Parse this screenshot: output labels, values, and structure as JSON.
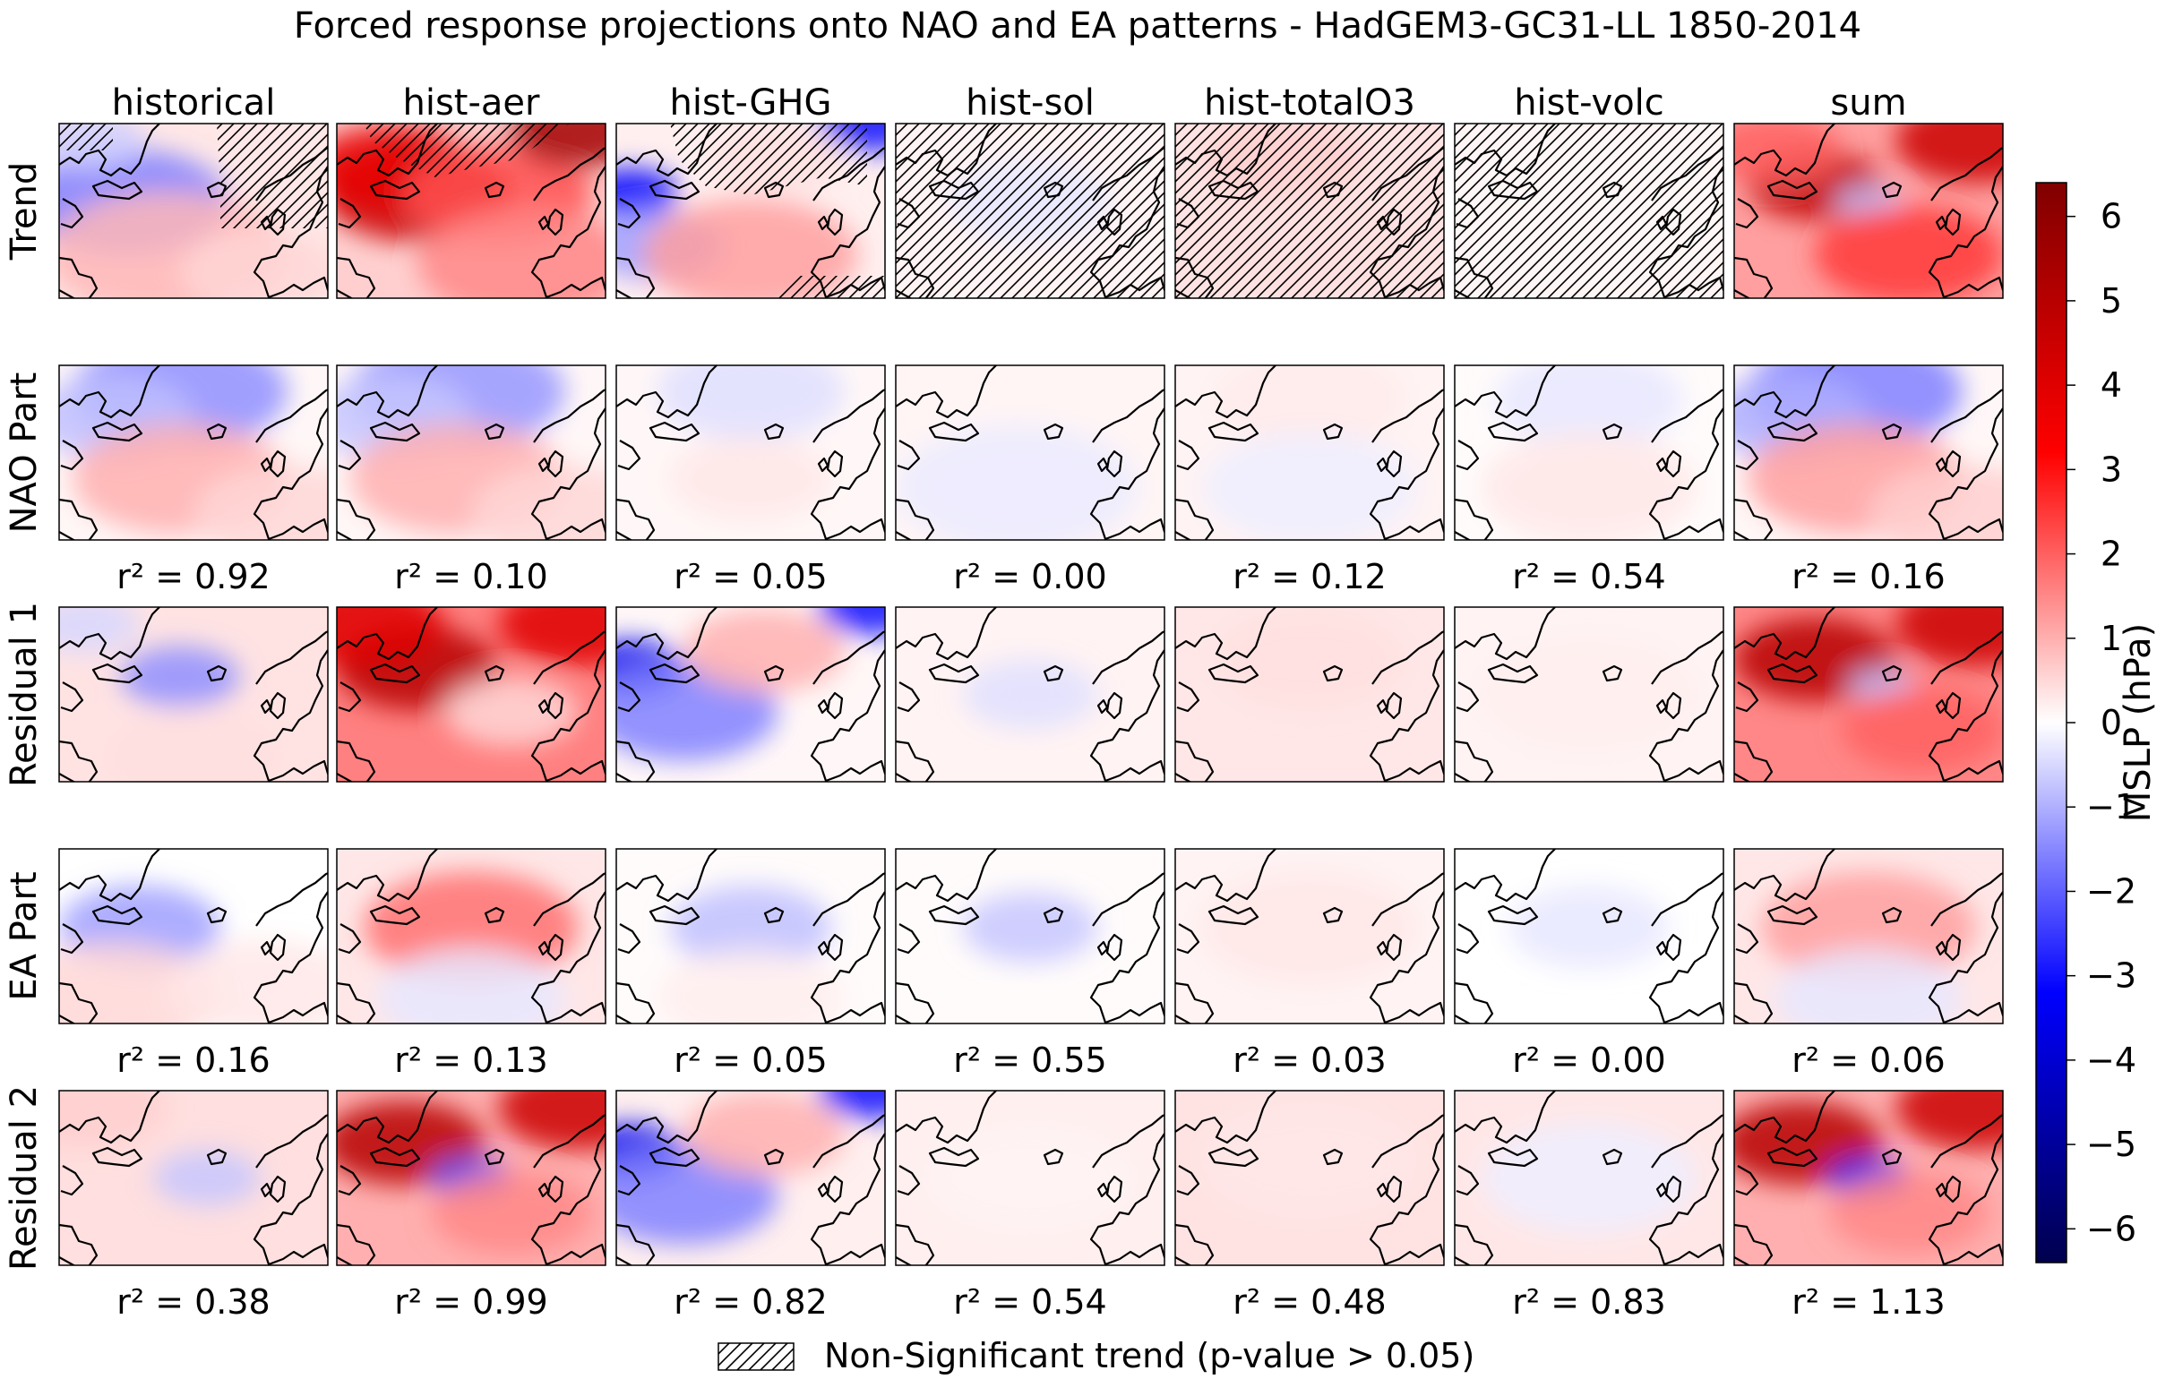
{
  "chart_data": {
    "type": "heatmap",
    "title": "Forced response projections onto NAO and EA patterns - HadGEM3-GC31-LL 1850-2014",
    "columns": [
      "historical",
      "hist-aer",
      "hist-GHG",
      "hist-sol",
      "hist-totalO3",
      "hist-volc",
      "sum"
    ],
    "rows": [
      {
        "label": "Trend",
        "r2": []
      },
      {
        "label": "NAO Part",
        "r2": [
          "r² = 0.92",
          "r² = 0.10",
          "r² = 0.05",
          "r² = 0.00",
          "r² = 0.12",
          "r² = 0.54",
          "r² = 0.16"
        ]
      },
      {
        "label": "Residual 1",
        "r2": []
      },
      {
        "label": "EA Part",
        "r2": [
          "r² = 0.16",
          "r² = 0.13",
          "r² = 0.05",
          "r² = 0.55",
          "r² = 0.03",
          "r² = 0.00",
          "r² = 0.06"
        ]
      },
      {
        "label": "Residual 2",
        "r2": [
          "r² = 0.38",
          "r² = 0.99",
          "r² = 0.82",
          "r² = 0.54",
          "r² = 0.48",
          "r² = 0.83",
          "r² = 1.13"
        ]
      }
    ],
    "fields": [
      [
        {
          "bg": 0.3,
          "b": [
            [
              0.25,
              0.45,
              0.38,
              -1.6
            ],
            [
              0.12,
              0.1,
              0.2,
              -0.6
            ],
            [
              0.4,
              0.75,
              0.45,
              0.9
            ],
            [
              0.75,
              0.85,
              0.3,
              0.5
            ]
          ]
        },
        {
          "bg": 0.6,
          "b": [
            [
              0.3,
              0.4,
              0.35,
              4.5
            ],
            [
              0.2,
              0.25,
              0.3,
              3.8
            ],
            [
              0.6,
              0.4,
              0.35,
              2.2
            ],
            [
              0.9,
              0.05,
              0.25,
              5.5
            ],
            [
              0.7,
              0.8,
              0.4,
              1.5
            ]
          ]
        },
        {
          "bg": 0.2,
          "b": [
            [
              0.05,
              0.4,
              0.18,
              -3.2
            ],
            [
              0.15,
              0.7,
              0.25,
              -1.2
            ],
            [
              0.5,
              0.75,
              0.4,
              1.2
            ],
            [
              0.95,
              0.0,
              0.2,
              -3.0
            ],
            [
              0.6,
              0.2,
              0.25,
              0.4
            ]
          ]
        },
        {
          "bg": 0.15,
          "b": [
            [
              0.5,
              0.45,
              0.3,
              -0.3
            ]
          ]
        },
        {
          "bg": 0.35,
          "b": [
            [
              0.4,
              0.2,
              0.3,
              0.6
            ],
            [
              0.5,
              0.7,
              0.4,
              0.4
            ]
          ]
        },
        {
          "bg": 0.12,
          "b": [
            [
              0.5,
              0.5,
              0.5,
              0.1
            ]
          ]
        },
        {
          "bg": 1.2,
          "b": [
            [
              0.3,
              0.35,
              0.25,
              4.8
            ],
            [
              0.5,
              0.45,
              0.12,
              -0.8
            ],
            [
              0.9,
              0.1,
              0.3,
              4.5
            ],
            [
              0.65,
              0.75,
              0.35,
              2.5
            ],
            [
              0.15,
              0.15,
              0.25,
              2.0
            ]
          ]
        }
      ],
      [
        {
          "bg": 0.1,
          "b": [
            [
              0.45,
              0.15,
              0.4,
              -1.4
            ],
            [
              0.2,
              0.3,
              0.3,
              -0.8
            ],
            [
              0.45,
              0.65,
              0.4,
              1.0
            ],
            [
              0.85,
              0.85,
              0.35,
              0.5
            ]
          ]
        },
        {
          "bg": 0.1,
          "b": [
            [
              0.45,
              0.15,
              0.4,
              -1.3
            ],
            [
              0.2,
              0.3,
              0.3,
              -0.7
            ],
            [
              0.45,
              0.65,
              0.4,
              1.0
            ],
            [
              0.85,
              0.85,
              0.35,
              0.5
            ]
          ]
        },
        {
          "bg": 0.1,
          "b": [
            [
              0.5,
              0.15,
              0.35,
              -0.4
            ],
            [
              0.5,
              0.65,
              0.3,
              0.3
            ]
          ]
        },
        {
          "bg": 0.12,
          "b": [
            [
              0.45,
              0.7,
              0.45,
              -0.25
            ]
          ]
        },
        {
          "bg": 0.15,
          "b": [
            [
              0.5,
              0.2,
              0.35,
              0.25
            ],
            [
              0.5,
              0.7,
              0.4,
              -0.2
            ]
          ]
        },
        {
          "bg": 0.05,
          "b": [
            [
              0.5,
              0.2,
              0.35,
              -0.3
            ],
            [
              0.5,
              0.7,
              0.4,
              0.3
            ]
          ]
        },
        {
          "bg": 0.1,
          "b": [
            [
              0.45,
              0.15,
              0.4,
              -1.6
            ],
            [
              0.2,
              0.3,
              0.3,
              -1.0
            ],
            [
              0.45,
              0.65,
              0.4,
              1.2
            ],
            [
              0.85,
              0.85,
              0.35,
              0.6
            ]
          ]
        }
      ],
      [
        {
          "bg": 0.35,
          "b": [
            [
              0.45,
              0.4,
              0.22,
              -1.4
            ],
            [
              0.1,
              0.1,
              0.2,
              -0.5
            ],
            [
              0.5,
              0.85,
              0.35,
              0.4
            ]
          ]
        },
        {
          "bg": 1.6,
          "b": [
            [
              0.3,
              0.35,
              0.3,
              5.0
            ],
            [
              0.1,
              0.1,
              0.3,
              4.0
            ],
            [
              0.9,
              0.1,
              0.3,
              4.0
            ],
            [
              0.65,
              0.6,
              0.25,
              0.5
            ]
          ]
        },
        {
          "bg": 0.1,
          "b": [
            [
              0.05,
              0.35,
              0.2,
              -3.5
            ],
            [
              0.25,
              0.6,
              0.35,
              -1.6
            ],
            [
              0.95,
              0.0,
              0.2,
              -3.0
            ],
            [
              0.55,
              0.25,
              0.3,
              1.0
            ]
          ]
        },
        {
          "bg": 0.15,
          "b": [
            [
              0.5,
              0.5,
              0.25,
              -0.4
            ]
          ]
        },
        {
          "bg": 0.3,
          "b": [
            [
              0.5,
              0.3,
              0.35,
              0.4
            ]
          ]
        },
        {
          "bg": 0.15,
          "b": [
            [
              0.5,
              0.5,
              0.4,
              0.2
            ]
          ]
        },
        {
          "bg": 1.5,
          "b": [
            [
              0.3,
              0.3,
              0.3,
              5.0
            ],
            [
              0.55,
              0.45,
              0.12,
              -0.8
            ],
            [
              0.9,
              0.1,
              0.3,
              4.5
            ],
            [
              0.7,
              0.7,
              0.3,
              2.0
            ]
          ]
        }
      ],
      [
        {
          "bg": 0.0,
          "b": [
            [
              0.3,
              0.45,
              0.3,
              -1.2
            ],
            [
              0.2,
              0.85,
              0.4,
              0.5
            ],
            [
              0.75,
              0.8,
              0.35,
              0.3
            ]
          ]
        },
        {
          "bg": 0.3,
          "b": [
            [
              0.5,
              0.45,
              0.4,
              1.8
            ],
            [
              0.5,
              0.85,
              0.35,
              -0.3
            ]
          ]
        },
        {
          "bg": 0.05,
          "b": [
            [
              0.5,
              0.45,
              0.3,
              -0.8
            ],
            [
              0.5,
              0.85,
              0.35,
              0.2
            ]
          ]
        },
        {
          "bg": 0.05,
          "b": [
            [
              0.5,
              0.45,
              0.25,
              -0.7
            ]
          ]
        },
        {
          "bg": 0.15,
          "b": [
            [
              0.5,
              0.45,
              0.4,
              0.3
            ]
          ]
        },
        {
          "bg": 0.0,
          "b": [
            [
              0.5,
              0.45,
              0.3,
              -0.3
            ]
          ]
        },
        {
          "bg": 0.3,
          "b": [
            [
              0.5,
              0.45,
              0.4,
              1.2
            ],
            [
              0.5,
              0.85,
              0.35,
              -0.3
            ]
          ]
        }
      ],
      [
        {
          "bg": 0.4,
          "b": [
            [
              0.55,
              0.5,
              0.2,
              -0.7
            ],
            [
              0.1,
              0.1,
              0.3,
              0.6
            ]
          ]
        },
        {
          "bg": 1.0,
          "b": [
            [
              0.25,
              0.3,
              0.3,
              5.0
            ],
            [
              0.5,
              0.5,
              0.15,
              -2.2
            ],
            [
              0.9,
              0.1,
              0.3,
              4.5
            ],
            [
              0.65,
              0.7,
              0.3,
              1.5
            ]
          ]
        },
        {
          "bg": 0.2,
          "b": [
            [
              0.05,
              0.35,
              0.2,
              -3.5
            ],
            [
              0.25,
              0.6,
              0.35,
              -1.6
            ],
            [
              0.95,
              0.0,
              0.2,
              -3.0
            ],
            [
              0.55,
              0.25,
              0.3,
              1.0
            ]
          ]
        },
        {
          "bg": 0.2,
          "b": [
            [
              0.5,
              0.5,
              0.4,
              0.15
            ]
          ]
        },
        {
          "bg": 0.35,
          "b": [
            [
              0.5,
              0.4,
              0.4,
              0.3
            ]
          ]
        },
        {
          "bg": 0.3,
          "b": [
            [
              0.5,
              0.5,
              0.4,
              -0.2
            ]
          ]
        },
        {
          "bg": 1.0,
          "b": [
            [
              0.25,
              0.3,
              0.3,
              5.0
            ],
            [
              0.5,
              0.5,
              0.15,
              -2.8
            ],
            [
              0.9,
              0.1,
              0.3,
              4.5
            ],
            [
              0.65,
              0.7,
              0.3,
              1.5
            ]
          ]
        }
      ]
    ],
    "hatching": [
      [
        0,
        0,
        "upper-right"
      ],
      [
        0,
        1,
        "upper-band"
      ],
      [
        0,
        2,
        "upper-band-partial"
      ],
      [
        0,
        3,
        "full"
      ],
      [
        0,
        4,
        "full"
      ],
      [
        0,
        5,
        "full"
      ]
    ],
    "colorbar": {
      "label": "MSLP (hPa)",
      "vmin": -6.4,
      "vmax": 6.4,
      "ticks": [
        6,
        5,
        4,
        3,
        2,
        1,
        0,
        -1,
        -2,
        -3,
        -4,
        -5,
        -6
      ],
      "tick_labels": [
        "6",
        "5",
        "4",
        "3",
        "2",
        "1",
        "0",
        "−1",
        "−2",
        "−3",
        "−4",
        "−5",
        "−6"
      ],
      "cmap": "seismic"
    },
    "legend": {
      "label": "Non-Significant trend (p-value > 0.05)"
    }
  }
}
